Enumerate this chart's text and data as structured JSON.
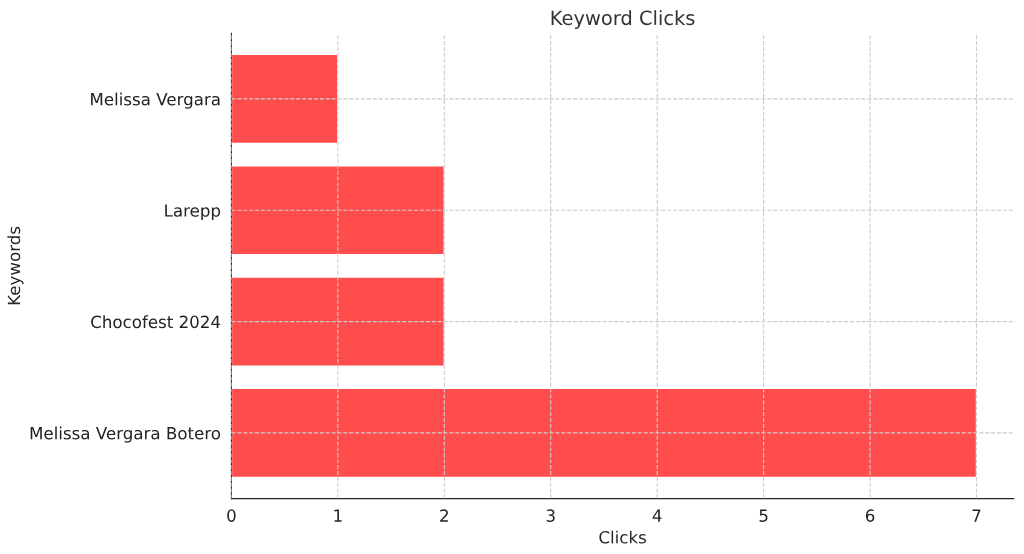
{
  "chart_data": {
    "type": "bar",
    "orientation": "horizontal",
    "title": "Keyword Clicks",
    "xlabel": "Clicks",
    "ylabel": "Keywords",
    "categories": [
      "Melissa Vergara",
      "Larepp",
      "Chocofest 2024",
      "Melissa Vergara Botero"
    ],
    "values": [
      1,
      2,
      2,
      7
    ],
    "color": "#ff4c4c",
    "xlim": [
      0,
      7.35
    ],
    "xticks": [
      0,
      1,
      2,
      3,
      4,
      5,
      6,
      7
    ],
    "grid": true,
    "line_style": "dashed"
  }
}
